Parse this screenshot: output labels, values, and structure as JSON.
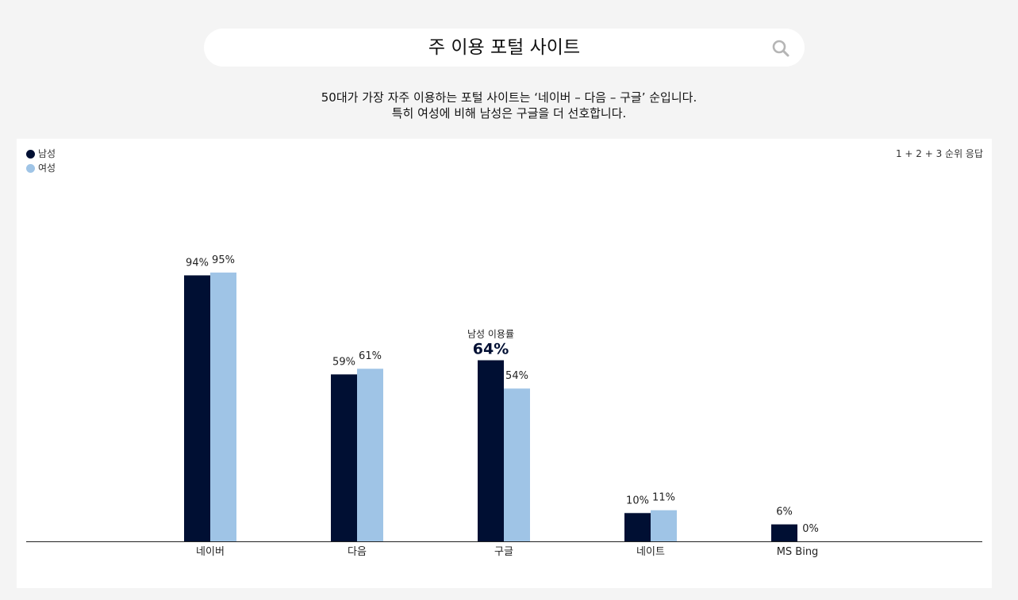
{
  "header": {
    "title": "주 이용 포털 사이트"
  },
  "subtitle": {
    "line1": "50대가 가장 자주 이용하는 포털 사이트는 ‘네이버 – 다음 – 구글’ 순입니다.",
    "line2": "특히 여성에 비해 남성은 구글을 더 선호합니다."
  },
  "icons": {
    "search": "search-icon"
  },
  "colors": {
    "male": "#000f33",
    "female": "#9fc4e6",
    "background": "#f4f4f4",
    "panel": "#ffffff"
  },
  "chart_data": {
    "type": "bar",
    "categories": [
      "네이버",
      "다음",
      "구글",
      "네이트",
      "MS Bing"
    ],
    "series": [
      {
        "name": "남성",
        "values": [
          94,
          59,
          64,
          10,
          6
        ]
      },
      {
        "name": "여성",
        "values": [
          95,
          61,
          54,
          11,
          0
        ]
      }
    ],
    "data_labels": [
      [
        "94%",
        "59%",
        "64%",
        "10%",
        "6%"
      ],
      [
        "95%",
        "61%",
        "54%",
        "11%",
        "0%"
      ]
    ],
    "highlight": {
      "category_index": 2,
      "series_index": 0,
      "caption": "남성 이용률",
      "value_label": "64%"
    },
    "response_note": "1 + 2 + 3  순위 응답",
    "ylim": [
      0,
      100
    ],
    "legend_position": "top-left",
    "grid": false,
    "title": "",
    "xlabel": "",
    "ylabel": ""
  }
}
